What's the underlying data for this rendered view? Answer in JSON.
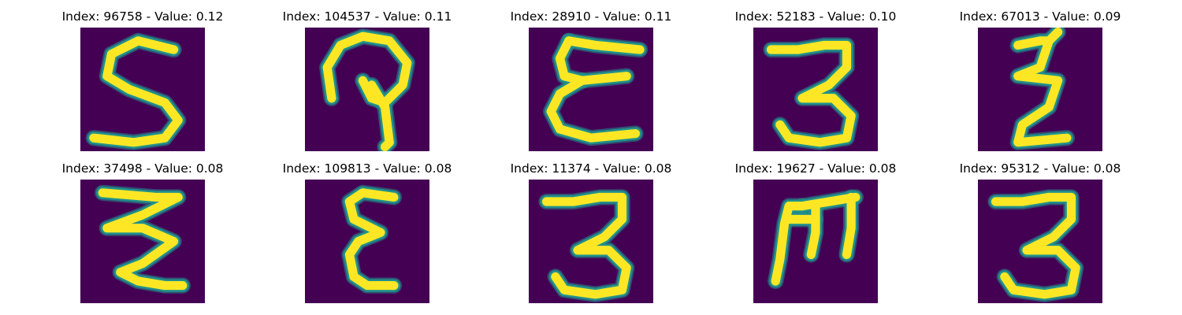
{
  "colors": {
    "background": "#440154",
    "mid": "#21918c",
    "high": "#fde725"
  },
  "panels": [
    {
      "title": "Index: 96758 - Value: 0.12",
      "glyph": "digit-5"
    },
    {
      "title": "Index: 104537 - Value: 0.11",
      "glyph": "loop"
    },
    {
      "title": "Index: 28910 - Value: 0.11",
      "glyph": "curly-E"
    },
    {
      "title": "Index: 52183 - Value: 0.10",
      "glyph": "digit-3"
    },
    {
      "title": "Index: 67013 - Value: 0.09",
      "glyph": "zigzag-E"
    },
    {
      "title": "Index: 37498 - Value: 0.08",
      "glyph": "zigzag"
    },
    {
      "title": "Index: 109813 - Value: 0.08",
      "glyph": "epsilon"
    },
    {
      "title": "Index: 11374 - Value: 0.08",
      "glyph": "digit-3"
    },
    {
      "title": "Index: 19627 - Value: 0.08",
      "glyph": "rotated-E"
    },
    {
      "title": "Index: 95312 - Value: 0.08",
      "glyph": "digit-3"
    }
  ]
}
